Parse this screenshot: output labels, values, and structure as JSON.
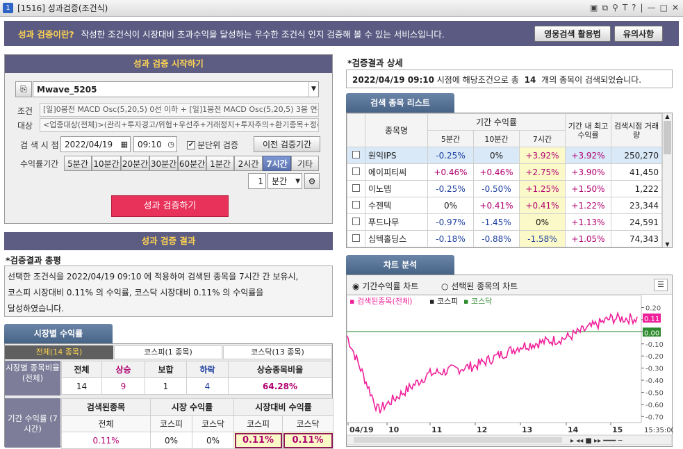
{
  "window": {
    "number": "1",
    "title": "[1516] 성과검증(조건식)",
    "controls": [
      "▣",
      "⧉",
      "⚲",
      "T",
      "?",
      "|",
      "—",
      "□",
      "✕"
    ]
  },
  "banner": {
    "title": "성과 검증이란?",
    "desc": "작성한 조건식이 시장대비 초과수익을 달성하는 우수한 조건식 인지 검증해 볼 수 있는 서비스입니다.",
    "btn_guide": "영웅검색 활용법",
    "btn_notice": "유의사항"
  },
  "start": {
    "header": "성과 검증 시작하기",
    "condition_name": "Mwave_5205",
    "cond_label": "조건",
    "target_label": "대상",
    "cond_text": "[일]0봉전 MACD Osc(5,20,5) 0선 이하 + [일]1봉전 MACD Osc(5,20,5) 3봉 연속 상승",
    "target_text": "<업종대상(전체)>(관리+투자경고/위험+우선주+거래정지+투자주의+환기종목+정리매매)",
    "time_label": "검 색 시 점",
    "date": "2022/04/19",
    "time": "09:10",
    "minute_check": "분단위 검증",
    "prev_btn": "이전 검증기간",
    "period_label": "수익률기간",
    "periods": [
      "5분간",
      "10분간",
      "20분간",
      "30분간",
      "60분간",
      "1분간",
      "2시간",
      "7시간",
      "기타"
    ],
    "selected_period": "7시간",
    "unit_num": "1",
    "unit_sel": "분간",
    "run_btn": "성과 검증하기"
  },
  "result": {
    "header": "성과 검증 결과",
    "summary_title": "*검증결과 총평",
    "summary_lines": [
      "선택한 조건식을 2022/04/19 09:10  에 적용하여 검색된 종목을  7시간  간 보유시,",
      "코스피 시장대비  0.11%  의 수익률, 코스닥 시장대비  0.11%  의 수익률을",
      "달성하였습니다."
    ]
  },
  "market": {
    "tab_label": "시장별 수익률",
    "tabs": [
      "전체(14 종목)",
      "코스피(1 종목)",
      "코스닥(13 종목)"
    ],
    "row_label": "시장별 종목비율 (전체)",
    "cols": [
      "전체",
      "상승",
      "보합",
      "하락",
      "상승종목비율"
    ],
    "values": [
      "14",
      "9",
      "1",
      "4",
      "64.28%"
    ],
    "ret_label": "기간 수익률 (7시간)",
    "h_found": "검색된종목",
    "h_market": "시장 수익률",
    "h_vs": "시장대비 수익률",
    "sub_all": "전체",
    "sub_kospi": "코스피",
    "sub_kosdaq": "코스닥",
    "sub_kospi2": "코스피",
    "sub_kosdaq2": "코스닥",
    "ret_values": [
      "0.11%",
      "0%",
      "0%",
      "0.11%",
      "0.11%"
    ]
  },
  "detail": {
    "title": "*검증결과 상세",
    "date": "2022/04/19 09:10",
    "text1": "시점에 해당조건으로 총",
    "count": "14",
    "text2": "개의 종목이 검색되었습니다."
  },
  "list": {
    "tab_label": "검색 종목 리스트",
    "h_name": "종목명",
    "h_period": "기간 수익률",
    "h_5": "5분간",
    "h_10": "10분간",
    "h_7h": "7시간",
    "h_max": "기간 내 최고수익률",
    "h_vol": "검색시점 거래량",
    "rows": [
      {
        "name": "원익IPS",
        "r5": "-0.25%",
        "r10": "0%",
        "r7": "+3.92%",
        "max": "+3.92%",
        "vol": "250,270"
      },
      {
        "name": "에이피티씨",
        "r5": "+0.46%",
        "r10": "+0.46%",
        "r7": "+2.75%",
        "max": "+3.90%",
        "vol": "41,450"
      },
      {
        "name": "이노뎁",
        "r5": "-0.25%",
        "r10": "-0.50%",
        "r7": "+1.25%",
        "max": "+1.50%",
        "vol": "1,222"
      },
      {
        "name": "수젠텍",
        "r5": "0%",
        "r10": "+0.41%",
        "r7": "+0.41%",
        "max": "+1.22%",
        "vol": "23,344"
      },
      {
        "name": "푸드나무",
        "r5": "-0.97%",
        "r10": "-1.45%",
        "r7": "0%",
        "max": "+1.13%",
        "vol": "24,591"
      },
      {
        "name": "심텍홀딩스",
        "r5": "-0.18%",
        "r10": "-0.88%",
        "r7": "-1.58%",
        "max": "+1.05%",
        "vol": "74,343"
      }
    ]
  },
  "chart": {
    "tab_label": "차트 분석",
    "radio1": "기간수익률 차트",
    "radio2": "선택된 종목의 차트",
    "legend": [
      "검색된종목(전체)",
      "코스피",
      "코스닥"
    ],
    "yticks": [
      "0.20",
      "0.10",
      "0.00",
      "-0.10",
      "-0.20",
      "-0.30",
      "-0.40",
      "-0.50",
      "-0.60",
      "-0.70"
    ],
    "xticks": [
      "04/19",
      "10",
      "11",
      "12",
      "13",
      "14",
      "15"
    ],
    "time": "15:35:00",
    "val_pink": "0.11",
    "val_green": "0.00"
  },
  "colors": {
    "pink": "#f0209a",
    "green": "#2e8a2e",
    "header": "#5d5d84"
  },
  "chart_data": {
    "type": "line",
    "title": "",
    "x": [
      "09:10",
      "10:00",
      "11:00",
      "12:00",
      "13:00",
      "14:00",
      "15:00",
      "15:35"
    ],
    "series": [
      {
        "name": "검색된종목(전체)",
        "values": [
          -0.03,
          -0.65,
          -0.35,
          -0.28,
          -0.12,
          -0.05,
          0.11,
          0.11
        ]
      },
      {
        "name": "코스닥",
        "values": [
          0,
          0,
          0,
          0,
          0,
          0,
          0,
          0
        ]
      }
    ],
    "ylim": [
      -0.75,
      0.22
    ]
  }
}
